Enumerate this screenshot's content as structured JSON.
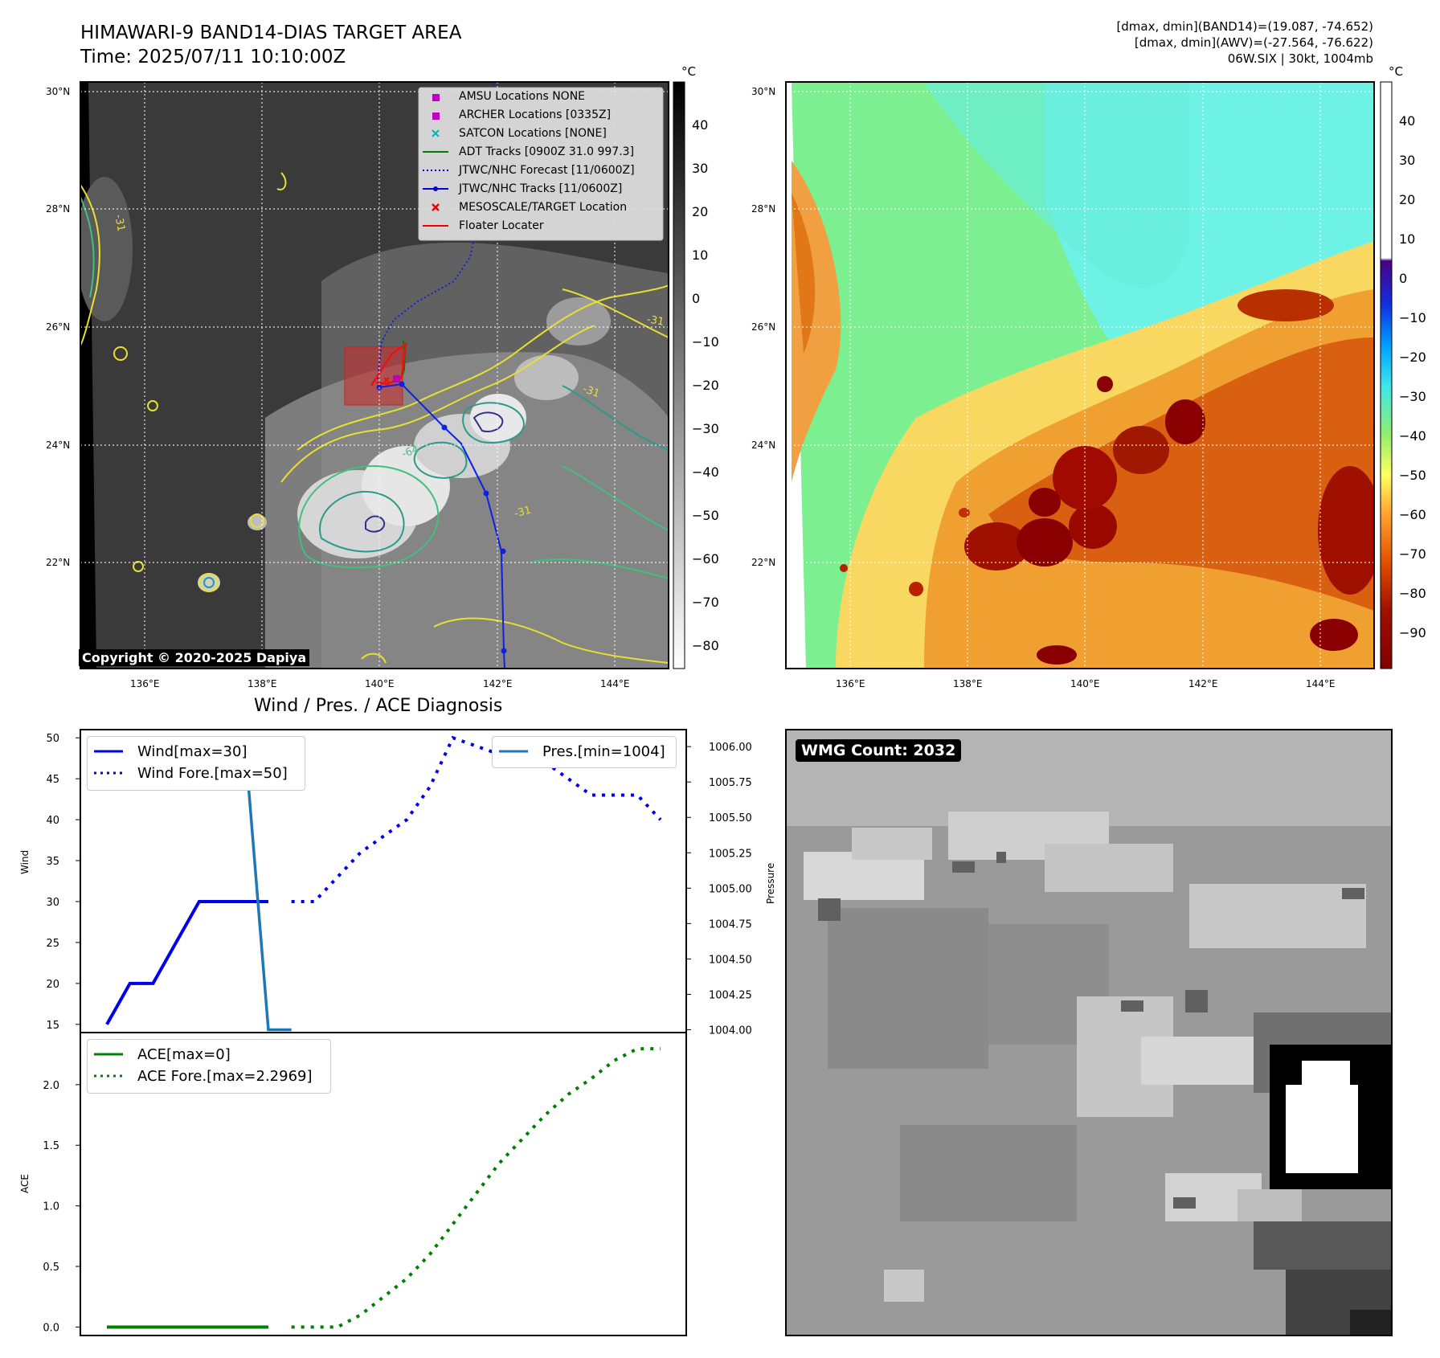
{
  "header": {
    "title_line1": "HIMAWARI-9 BAND14-DIAS TARGET AREA",
    "title_line2": "Time: 2025/07/11 10:10:00Z",
    "info_line1": "[dmax, dmin](BAND14)=(19.087, -74.652)",
    "info_line2": "[dmax, dmin](AWV)=(-27.564, -76.622)",
    "info_line3": "06W.SIX | 30kt, 1004mb"
  },
  "maps": {
    "lat_labels": [
      "30°N",
      "28°N",
      "26°N",
      "24°N",
      "22°N"
    ],
    "lon_labels": [
      "136°E",
      "138°E",
      "140°E",
      "142°E",
      "144°E"
    ],
    "unit": "°C",
    "copyright": "Copyright © 2020-2025 Dapiya",
    "contour_labels": [
      "-31",
      "-64",
      "-31",
      "-31",
      "-31"
    ],
    "left_colorbar_ticks": [
      "40",
      "30",
      "20",
      "10",
      "0",
      "−10",
      "−20",
      "−30",
      "−40",
      "−50",
      "−60",
      "−70",
      "−80"
    ],
    "right_colorbar_ticks": [
      "40",
      "30",
      "20",
      "10",
      "0",
      "−10",
      "−20",
      "−30",
      "−40",
      "−50",
      "−60",
      "−70",
      "−80",
      "−90"
    ],
    "legend": [
      {
        "label": "AMSU Locations NONE",
        "color": "#c000c0",
        "marker": "square"
      },
      {
        "label": "ARCHER Locations [0335Z]",
        "color": "#c000c0",
        "marker": "square"
      },
      {
        "label": "SATCON Locations [NONE]",
        "color": "#00b4b4",
        "marker": "x"
      },
      {
        "label": "ADT Tracks [0900Z 31.0 997.3]",
        "color": "#008000",
        "marker": "line"
      },
      {
        "label": "JTWC/NHC Forecast [11/0600Z]",
        "color": "#0000dd",
        "marker": "dotted"
      },
      {
        "label": "JTWC/NHC Tracks [11/0600Z]",
        "color": "#0000dd",
        "marker": "line-dot"
      },
      {
        "label": "MESOSCALE/TARGET Location",
        "color": "#ee0000",
        "marker": "x"
      },
      {
        "label": "Floater Locater",
        "color": "#ee0000",
        "marker": "line"
      }
    ]
  },
  "wmg": {
    "label": "WMG Count: 2032"
  },
  "chart_data": [
    {
      "type": "line",
      "title": "Wind / Pres. / ACE Diagnosis",
      "ylabel": "Wind",
      "ylabel_right": "Pressure",
      "ylim": [
        14,
        51
      ],
      "ylim_right": [
        1003.98,
        1006.12
      ],
      "yticks": [
        15,
        20,
        25,
        30,
        35,
        40,
        45,
        50
      ],
      "yticks_right": [
        "1004.00",
        "1004.25",
        "1004.50",
        "1004.75",
        "1005.00",
        "1005.25",
        "1005.50",
        "1005.75",
        "1006.00"
      ],
      "legend_left": [
        {
          "name": "Wind[max=30]",
          "color": "#0000ee",
          "style": "solid"
        },
        {
          "name": "Wind Fore.[max=50]",
          "color": "#0000ee",
          "style": "dotted"
        }
      ],
      "legend_right": [
        {
          "name": "Pres.[min=1004]",
          "color": "#1f77b4",
          "style": "solid"
        }
      ],
      "series": [
        {
          "name": "Wind[max=30]",
          "axis": "left",
          "x": [
            0,
            1,
            2,
            3,
            4,
            5,
            6,
            7
          ],
          "values": [
            15,
            20,
            20,
            25,
            30,
            30,
            30,
            30
          ]
        },
        {
          "name": "Wind Fore.[max=50]",
          "axis": "left",
          "x": [
            8,
            9,
            10,
            11,
            12,
            13,
            14,
            15,
            16,
            17,
            18,
            19,
            20,
            21,
            22,
            23,
            24
          ],
          "values": [
            30,
            30,
            33,
            36,
            38,
            40,
            44,
            50,
            49,
            48,
            48,
            47,
            45,
            43,
            43,
            43,
            40
          ]
        },
        {
          "name": "Pres.[min=1004]",
          "axis": "right",
          "x": [
            0,
            1,
            2,
            3,
            4,
            5,
            6,
            7,
            8
          ],
          "values": [
            1006,
            1006,
            1006,
            1006,
            1006,
            1006,
            1006,
            1004,
            1004
          ]
        }
      ]
    },
    {
      "type": "line",
      "ylabel": "ACE",
      "ylim": [
        -0.07,
        2.43
      ],
      "yticks": [
        "0.0",
        "0.5",
        "1.0",
        "1.5",
        "2.0"
      ],
      "legend": [
        {
          "name": "ACE[max=0]",
          "color": "#008000",
          "style": "solid"
        },
        {
          "name": "ACE Fore.[max=2.2969]",
          "color": "#008000",
          "style": "dotted"
        }
      ],
      "series": [
        {
          "name": "ACE[max=0]",
          "x": [
            0,
            1,
            2,
            3,
            4,
            5,
            6,
            7
          ],
          "values": [
            0,
            0,
            0,
            0,
            0,
            0,
            0,
            0
          ]
        },
        {
          "name": "ACE Fore.[max=2.2969]",
          "x": [
            8,
            9,
            10,
            11,
            12,
            13,
            14,
            15,
            16,
            17,
            18,
            19,
            20,
            21,
            22,
            23,
            24
          ],
          "values": [
            0,
            0,
            0,
            0.1,
            0.25,
            0.4,
            0.6,
            0.85,
            1.1,
            1.35,
            1.55,
            1.75,
            1.92,
            2.05,
            2.2,
            2.2969,
            2.2969
          ]
        }
      ]
    }
  ]
}
